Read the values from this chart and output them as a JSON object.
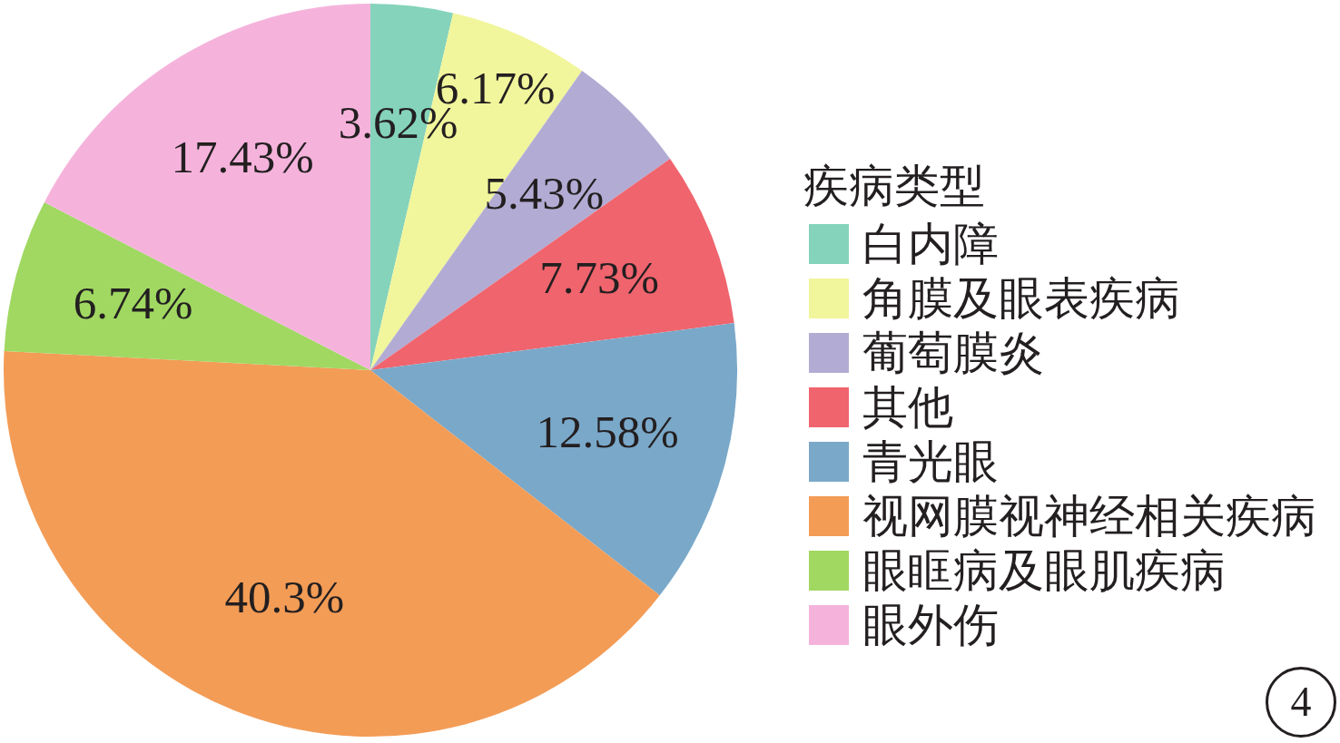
{
  "chart_data": {
    "type": "pie",
    "legend_title": "疾病类型",
    "categories": [
      "白内障",
      "角膜及眼表疾病",
      "葡萄膜炎",
      "其他",
      "青光眼",
      "视网膜视神经相关疾病",
      "眼眶病及眼肌疾病",
      "眼外伤"
    ],
    "values": [
      3.62,
      6.17,
      5.43,
      7.73,
      12.58,
      40.3,
      6.74,
      17.43
    ],
    "colors": [
      "#85d3bb",
      "#f1f59c",
      "#b2acd4",
      "#f0646d",
      "#7aa8c9",
      "#f39c56",
      "#a0d862",
      "#f5b3dc"
    ],
    "value_labels": [
      "3.62%",
      "6.17%",
      "5.43%",
      "7.73%",
      "12.58%",
      "40.3%",
      "6.74%",
      "17.43%"
    ],
    "legend": "right",
    "annotations": [
      "4"
    ]
  }
}
